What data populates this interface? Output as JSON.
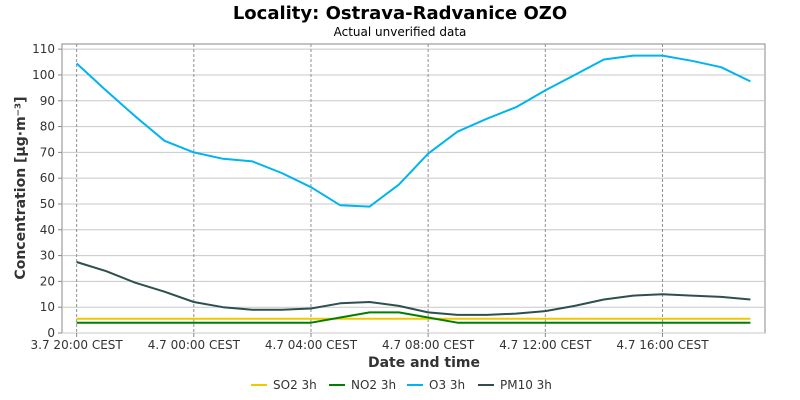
{
  "chart_data": {
    "type": "line",
    "title": "Locality: Ostrava-Radvanice OZO",
    "subtitle": "Actual unverified data",
    "xlabel": "Date and time",
    "ylabel": "Concentration [µg·m⁻³]",
    "ylim": [
      0,
      112
    ],
    "yticks": [
      0,
      10,
      20,
      30,
      40,
      50,
      60,
      70,
      80,
      90,
      100,
      110
    ],
    "xlim": [
      -0.5,
      23.5
    ],
    "xticks": [
      {
        "x": 0,
        "label": "3.7 20:00 CEST"
      },
      {
        "x": 4,
        "label": "4.7 00:00 CEST"
      },
      {
        "x": 8,
        "label": "4.7 04:00 CEST"
      },
      {
        "x": 12,
        "label": "4.7 08:00 CEST"
      },
      {
        "x": 16,
        "label": "4.7 12:00 CEST"
      },
      {
        "x": 20,
        "label": "4.7 16:00 CEST"
      }
    ],
    "x": [
      0,
      1,
      2,
      3,
      4,
      5,
      6,
      7,
      8,
      9,
      10,
      11,
      12,
      13,
      14,
      15,
      16,
      17,
      18,
      19,
      20,
      21,
      22,
      23
    ],
    "grid": true,
    "legend_position": "bottom",
    "series": [
      {
        "name": "SO2 3h",
        "color": "#f0c800",
        "values": [
          5.5,
          5.5,
          5.5,
          5.5,
          5.5,
          5.5,
          5.5,
          5.5,
          5.5,
          5.5,
          5.5,
          5.5,
          5.5,
          5.5,
          5.5,
          5.5,
          5.5,
          5.5,
          5.5,
          5.5,
          5.5,
          5.5,
          5.5,
          5.5
        ]
      },
      {
        "name": "NO2 3h",
        "color": "#008000",
        "values": [
          4,
          4,
          4,
          4,
          4,
          4,
          4,
          4,
          4,
          6,
          8,
          8,
          6,
          4,
          4,
          4,
          4,
          4,
          4,
          4,
          4,
          4,
          4,
          4
        ]
      },
      {
        "name": "O3 3h",
        "color": "#00b4f0",
        "values": [
          104.5,
          94,
          84,
          74.5,
          70,
          67.5,
          66.5,
          62,
          56.5,
          49.5,
          49,
          57.5,
          69.5,
          78,
          83,
          87.5,
          94,
          100,
          106,
          107.5,
          107.5,
          105.5,
          103,
          97.5
        ]
      },
      {
        "name": "PM10 3h",
        "color": "#2f4f4f",
        "values": [
          27.5,
          24,
          19.5,
          16,
          12,
          10,
          9,
          9,
          9.5,
          11.5,
          12,
          10.5,
          8,
          7,
          7,
          7.5,
          8.5,
          10.5,
          13,
          14.5,
          15,
          14.5,
          14,
          13
        ]
      }
    ]
  }
}
